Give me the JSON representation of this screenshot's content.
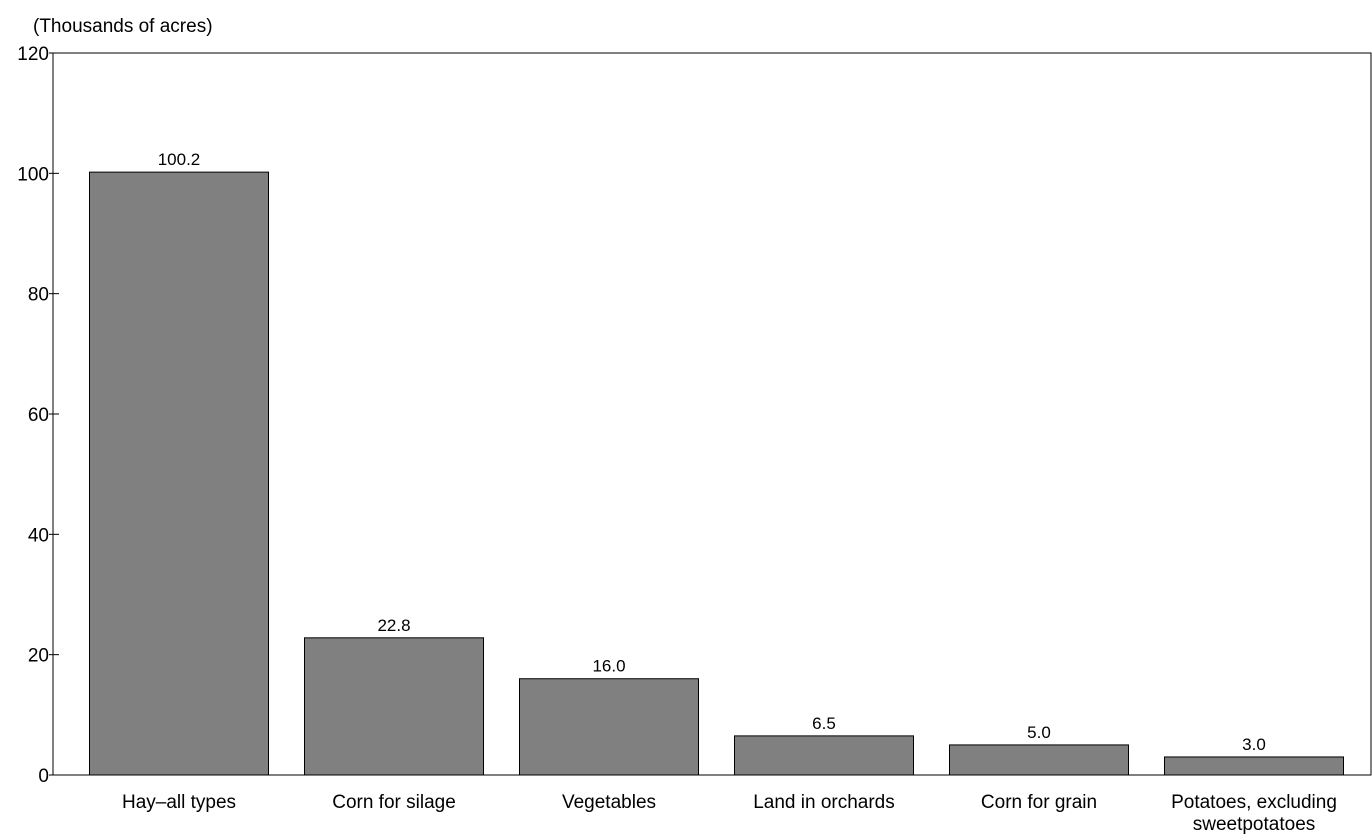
{
  "chart_data": {
    "type": "bar",
    "title": "",
    "unit_label": "(Thousands of acres)",
    "xlabel": "",
    "ylabel": "",
    "ylim": [
      0,
      120
    ],
    "yticks": [
      0,
      20,
      40,
      60,
      80,
      100,
      120
    ],
    "grid": false,
    "bar_color": "#808080",
    "categories": [
      [
        "Hay–all types"
      ],
      [
        "Corn for silage"
      ],
      [
        "Vegetables"
      ],
      [
        "Land in orchards"
      ],
      [
        "Corn for grain"
      ],
      [
        "Potatoes, excluding",
        "sweetpotatoes"
      ]
    ],
    "values": [
      100.2,
      22.8,
      16.0,
      6.5,
      5.0,
      3.0
    ],
    "value_labels": [
      "100.2",
      "22.8",
      "16.0",
      "6.5",
      "5.0",
      "3.0"
    ]
  }
}
